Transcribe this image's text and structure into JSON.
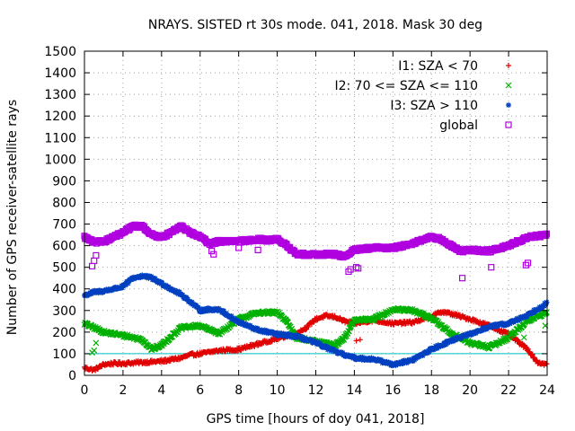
{
  "chart_data": {
    "type": "scatter",
    "title": "NRAYS. SISTED rt 30s mode. 041, 2018. Mask 30 deg",
    "xlabel": "GPS time [hours of doy 041, 2018]",
    "ylabel": "Number of GPS receiver-satellite rays",
    "xlim": [
      0,
      24
    ],
    "ylim": [
      0,
      1500
    ],
    "xticks": [
      "0",
      "2",
      "4",
      "6",
      "8",
      "10",
      "12",
      "14",
      "16",
      "18",
      "20",
      "22",
      "24"
    ],
    "yticks": [
      "0",
      "100",
      "200",
      "300",
      "400",
      "500",
      "600",
      "700",
      "800",
      "900",
      "1000",
      "1100",
      "1200",
      "1300",
      "1400",
      "1500"
    ],
    "grid": true,
    "legend_position": "top-right",
    "reference_line": {
      "y": 100,
      "color": "#00c0c0"
    },
    "series": [
      {
        "name": "I1: SZA < 70",
        "marker": "+",
        "color": "#e00000",
        "x": [
          0,
          0.5,
          1,
          1.5,
          2,
          3,
          4,
          5,
          5.5,
          6,
          7,
          8,
          9,
          10,
          11,
          11.5,
          12,
          12.5,
          13,
          13.5,
          14,
          15,
          16,
          17,
          18,
          18.5,
          19,
          20,
          21,
          22,
          23,
          23.5,
          24
        ],
        "values": [
          35,
          25,
          50,
          55,
          55,
          60,
          65,
          80,
          95,
          100,
          115,
          120,
          145,
          170,
          195,
          220,
          260,
          275,
          270,
          250,
          240,
          255,
          240,
          245,
          270,
          295,
          285,
          260,
          230,
          190,
          120,
          60,
          50
        ],
        "scattered": [
          {
            "x": 14.1,
            "y": 160
          },
          {
            "x": 14.3,
            "y": 165
          },
          {
            "x": 10.2,
            "y": 185
          },
          {
            "x": 22.1,
            "y": 250
          }
        ]
      },
      {
        "name": "I2: 70 <= SZA <= 110",
        "marker": "x",
        "color": "#00b000",
        "x": [
          0,
          0.5,
          1,
          2,
          3,
          3.5,
          4,
          5,
          6,
          6.5,
          7,
          8,
          9,
          10,
          10.5,
          11,
          12,
          13,
          13.5,
          14,
          15,
          16,
          17,
          18,
          19,
          20,
          21,
          22,
          23,
          24
        ],
        "values": [
          240,
          220,
          200,
          185,
          165,
          120,
          140,
          220,
          230,
          210,
          195,
          260,
          290,
          290,
          250,
          175,
          155,
          140,
          175,
          255,
          260,
          305,
          300,
          265,
          195,
          150,
          130,
          175,
          255,
          290
        ],
        "scattered": [
          {
            "x": 0.5,
            "y": 115
          },
          {
            "x": 0.6,
            "y": 150
          },
          {
            "x": 0.4,
            "y": 105
          },
          {
            "x": 23.9,
            "y": 230
          },
          {
            "x": 22.8,
            "y": 175
          }
        ]
      },
      {
        "name": "I3: SZA > 110",
        "marker": "*",
        "color": "#0040c0",
        "x": [
          0,
          0.5,
          1,
          2,
          2.5,
          3,
          3.5,
          4,
          4.5,
          5,
          5.5,
          6,
          6.5,
          7,
          8,
          9,
          10,
          11,
          12,
          13,
          14,
          15,
          16,
          17,
          18,
          19,
          20,
          21,
          22,
          23,
          24
        ],
        "values": [
          370,
          385,
          390,
          410,
          450,
          460,
          450,
          425,
          400,
          375,
          340,
          300,
          305,
          305,
          245,
          210,
          190,
          180,
          150,
          110,
          80,
          75,
          50,
          70,
          120,
          160,
          190,
          225,
          240,
          280,
          335
        ],
        "scattered": []
      },
      {
        "name": "global",
        "marker": "square",
        "color": "#b000e0",
        "x": [
          0,
          0.5,
          1,
          1.5,
          2,
          2.5,
          3,
          3.5,
          4,
          4.5,
          5,
          5.5,
          6,
          6.5,
          7,
          8,
          9,
          9.5,
          10,
          10.5,
          11,
          12,
          13,
          13.5,
          14,
          15,
          16,
          17,
          18,
          18.5,
          19,
          19.5,
          20,
          21,
          22,
          23,
          24
        ],
        "values": [
          640,
          615,
          620,
          640,
          660,
          690,
          690,
          650,
          640,
          660,
          690,
          660,
          640,
          610,
          620,
          620,
          630,
          625,
          630,
          600,
          560,
          560,
          560,
          550,
          580,
          590,
          590,
          610,
          640,
          630,
          600,
          575,
          580,
          575,
          600,
          640,
          650
        ],
        "scattered": [
          {
            "x": 0.4,
            "y": 505
          },
          {
            "x": 0.5,
            "y": 530
          },
          {
            "x": 0.6,
            "y": 555
          },
          {
            "x": 6.6,
            "y": 575
          },
          {
            "x": 6.7,
            "y": 560
          },
          {
            "x": 8.0,
            "y": 590
          },
          {
            "x": 9.0,
            "y": 580
          },
          {
            "x": 13.7,
            "y": 480
          },
          {
            "x": 13.8,
            "y": 490
          },
          {
            "x": 14.1,
            "y": 500
          },
          {
            "x": 14.2,
            "y": 495
          },
          {
            "x": 19.6,
            "y": 450
          },
          {
            "x": 21.1,
            "y": 500
          },
          {
            "x": 23.0,
            "y": 520
          },
          {
            "x": 22.9,
            "y": 510
          }
        ]
      }
    ]
  }
}
